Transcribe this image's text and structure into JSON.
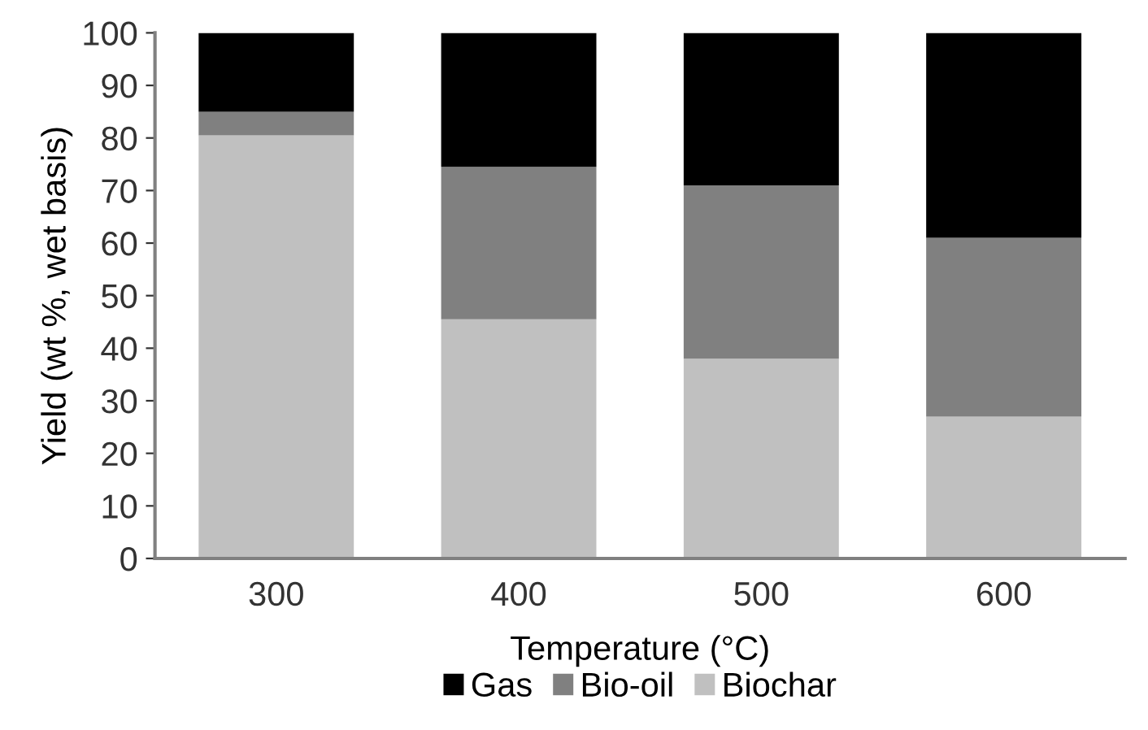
{
  "chart_data": {
    "type": "bar",
    "stacked": true,
    "xlabel": "Temperature (°C)",
    "ylabel": "Yield (wt %, wet basis)",
    "categories": [
      "300",
      "400",
      "500",
      "600"
    ],
    "series": [
      {
        "name": "Biochar",
        "color": "#c0c0c0",
        "values": [
          80.5,
          45.5,
          38,
          27
        ]
      },
      {
        "name": "Bio-oil",
        "color": "#808080",
        "values": [
          4.5,
          29,
          33,
          34
        ]
      },
      {
        "name": "Gas",
        "color": "#000000",
        "values": [
          15,
          25.5,
          29,
          39
        ]
      }
    ],
    "ylim": [
      0,
      100
    ],
    "yticks": [
      0,
      10,
      20,
      30,
      40,
      50,
      60,
      70,
      80,
      90,
      100
    ],
    "grid": false,
    "legend": "bottom"
  }
}
